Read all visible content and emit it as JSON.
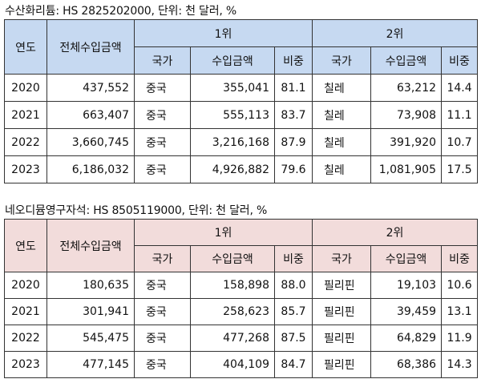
{
  "tables": [
    {
      "caption": "수산화리튬: HS 2825202000, 단위: 천 달러, %",
      "header": {
        "year": "연도",
        "total": "전체수입금액",
        "rank1": "1위",
        "rank2": "2위",
        "country": "국가",
        "amount": "수입금액",
        "share": "비중"
      },
      "rows": [
        {
          "year": "2020",
          "total": "437,552",
          "c1": "중국",
          "a1": "355,041",
          "s1": "81.1",
          "c2": "칠레",
          "a2": "63,212",
          "s2": "14.4"
        },
        {
          "year": "2021",
          "total": "663,407",
          "c1": "중국",
          "a1": "555,113",
          "s1": "83.7",
          "c2": "칠레",
          "a2": "73,908",
          "s2": "11.1"
        },
        {
          "year": "2022",
          "total": "3,660,745",
          "c1": "중국",
          "a1": "3,216,168",
          "s1": "87.9",
          "c2": "칠레",
          "a2": "391,920",
          "s2": "10.7"
        },
        {
          "year": "2023",
          "total": "6,186,032",
          "c1": "중국",
          "a1": "4,926,882",
          "s1": "79.6",
          "c2": "칠레",
          "a2": "1,081,905",
          "s2": "17.5"
        }
      ],
      "header_color": "#c6d9f1"
    },
    {
      "caption": "네오디뮴영구자석: HS 8505119000, 단위: 천 달러, %",
      "header": {
        "year": "연도",
        "total": "전체수입금액",
        "rank1": "1위",
        "rank2": "2위",
        "country": "국가",
        "amount": "수입금액",
        "share": "비중"
      },
      "rows": [
        {
          "year": "2020",
          "total": "180,635",
          "c1": "중국",
          "a1": "158,898",
          "s1": "88.0",
          "c2": "필리핀",
          "a2": "19,103",
          "s2": "10.6"
        },
        {
          "year": "2021",
          "total": "301,941",
          "c1": "중국",
          "a1": "258,623",
          "s1": "85.7",
          "c2": "필리핀",
          "a2": "39,459",
          "s2": "13.1"
        },
        {
          "year": "2022",
          "total": "545,475",
          "c1": "중국",
          "a1": "477,268",
          "s1": "87.5",
          "c2": "필리핀",
          "a2": "64,829",
          "s2": "11.9"
        },
        {
          "year": "2023",
          "total": "477,145",
          "c1": "중국",
          "a1": "404,109",
          "s1": "84.7",
          "c2": "필리핀",
          "a2": "68,386",
          "s2": "14.3"
        }
      ],
      "header_color": "#f2dcdb"
    }
  ]
}
